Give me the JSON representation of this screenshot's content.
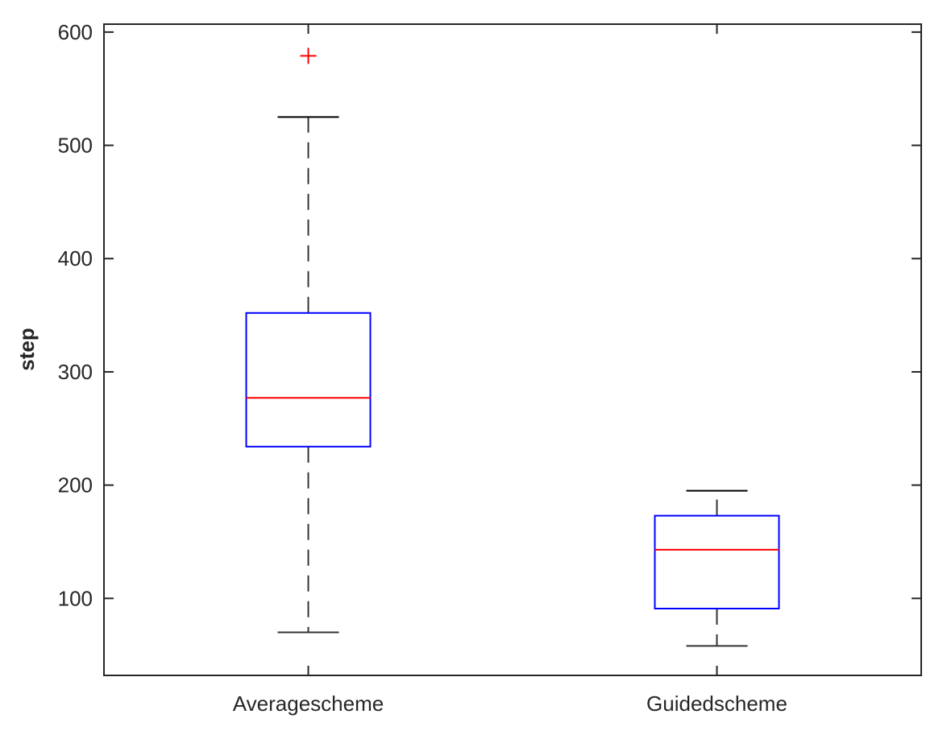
{
  "chart_data": {
    "type": "boxplot",
    "title": "",
    "xlabel": "",
    "ylabel": "step",
    "ylim": [
      32,
      607
    ],
    "yticks": [
      100,
      200,
      300,
      400,
      500,
      600
    ],
    "categories": [
      "Averagescheme",
      "Guidedscheme"
    ],
    "boxes": [
      {
        "category": "Averagescheme",
        "whisker_low": 70,
        "q1": 234,
        "median": 277,
        "q3": 352,
        "whisker_high": 525,
        "outliers": [
          579
        ]
      },
      {
        "category": "Guidedscheme",
        "whisker_low": 58,
        "q1": 91,
        "median": 143,
        "q3": 173,
        "whisker_high": 195,
        "outliers": []
      }
    ],
    "grid": false,
    "colors": {
      "box": "#0000ff",
      "median": "#ff0000",
      "whisker": "#333333",
      "outlier": "#ff0000",
      "axis": "#262626"
    }
  }
}
